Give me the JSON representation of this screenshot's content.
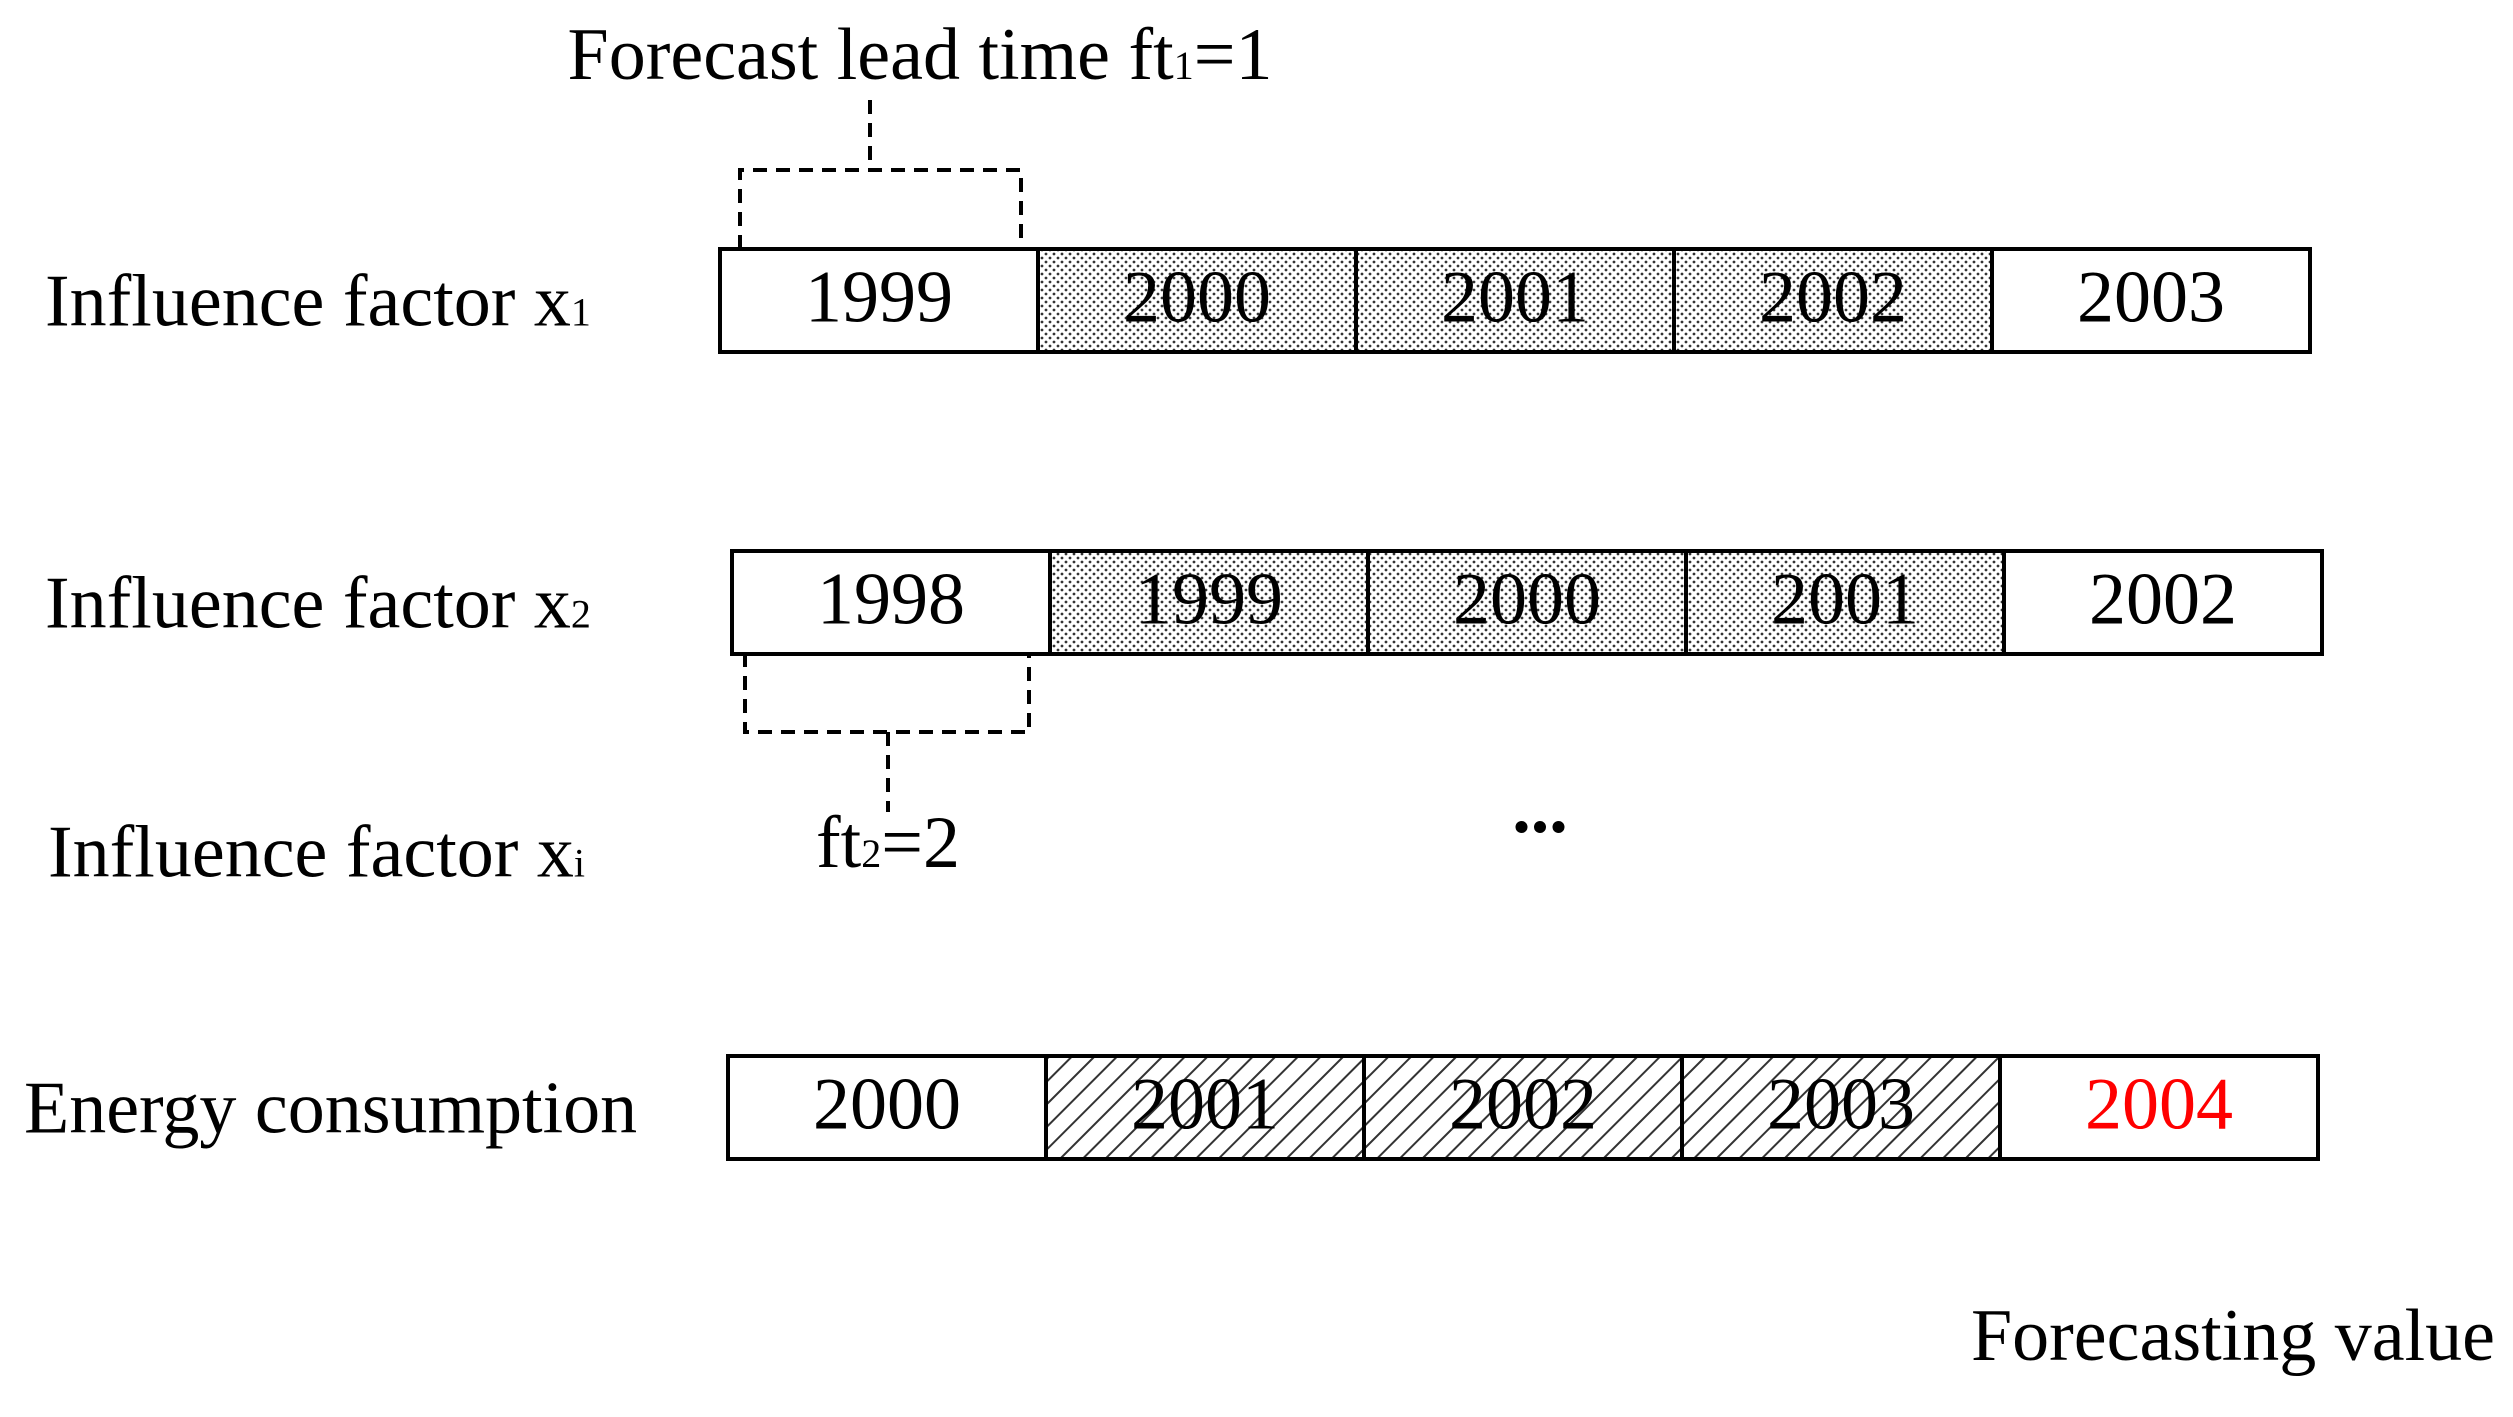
{
  "annotations": {
    "lead_time_1": {
      "text": "Forecast lead time ft",
      "sub": "1",
      "suffix": "=1"
    },
    "lead_time_2": {
      "text": "ft",
      "sub": "2",
      "suffix": "=2"
    },
    "ellipsis": "...",
    "forecast_label": "Forecasting value"
  },
  "rows": [
    {
      "label": "Influence factor x",
      "sub": "1",
      "pattern": "dots",
      "cells": [
        "1999",
        "2000",
        "2001",
        "2002",
        "2003"
      ]
    },
    {
      "label": "Influence factor x",
      "sub": "2",
      "pattern": "dots",
      "cells": [
        "1998",
        "1999",
        "2000",
        "2001",
        "2002"
      ]
    },
    {
      "label": "Influence factor x",
      "sub": "i"
    },
    {
      "label": "Energy consumption",
      "pattern": "hatch",
      "highlight_color": "#ff0000",
      "cells": [
        "2000",
        "2001",
        "2002",
        "2003",
        "2004"
      ]
    }
  ]
}
